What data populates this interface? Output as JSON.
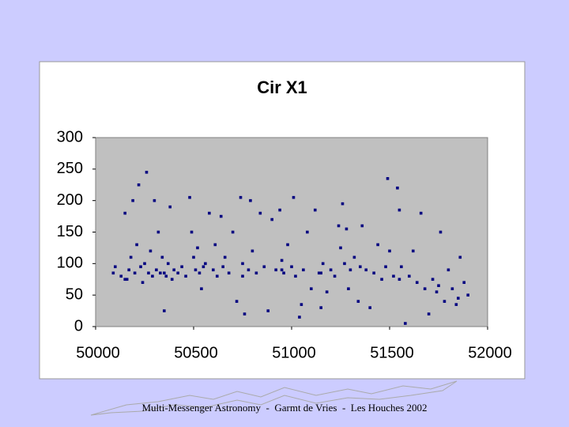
{
  "chart_data": {
    "type": "scatter",
    "title": "Cir X1",
    "x": [
      50090,
      50100,
      50130,
      50150,
      50160,
      50170,
      50180,
      50190,
      50200,
      50210,
      50220,
      50230,
      50240,
      50250,
      50260,
      50270,
      50280,
      50290,
      50300,
      50310,
      50320,
      50330,
      50340,
      50350,
      50360,
      50370,
      50380,
      50390,
      50400,
      50420,
      50440,
      50460,
      50480,
      50490,
      50500,
      50510,
      50520,
      50530,
      50540,
      50560,
      50580,
      50600,
      50610,
      50620,
      50640,
      50650,
      50660,
      50680,
      50700,
      50720,
      50740,
      50750,
      50760,
      50780,
      50790,
      50800,
      50820,
      50840,
      50860,
      50880,
      50900,
      50920,
      50940,
      50950,
      50960,
      50980,
      51000,
      51010,
      51020,
      51040,
      51050,
      51060,
      51080,
      51100,
      51120,
      51140,
      51150,
      51160,
      51180,
      51200,
      51220,
      51240,
      51250,
      51260,
      51270,
      51280,
      51290,
      51300,
      51320,
      51340,
      51360,
      51380,
      51400,
      51420,
      51440,
      51460,
      51480,
      51490,
      51500,
      51520,
      51540,
      51550,
      51560,
      51580,
      51600,
      51620,
      51640,
      51660,
      51680,
      51700,
      51720,
      51740,
      51760,
      51780,
      51800,
      51820,
      51840,
      51860,
      51880,
      51900,
      50150,
      50350,
      50550,
      50750,
      50950,
      51150,
      51350,
      51550,
      51750,
      51850
    ],
    "y": [
      85,
      95,
      80,
      180,
      75,
      90,
      110,
      200,
      85,
      130,
      225,
      95,
      70,
      100,
      245,
      85,
      120,
      80,
      200,
      90,
      150,
      85,
      110,
      25,
      80,
      100,
      190,
      75,
      90,
      85,
      95,
      80,
      205,
      150,
      110,
      90,
      125,
      85,
      60,
      100,
      180,
      90,
      130,
      80,
      175,
      95,
      110,
      85,
      150,
      40,
      205,
      100,
      20,
      90,
      200,
      120,
      85,
      180,
      95,
      25,
      170,
      90,
      185,
      105,
      85,
      130,
      95,
      205,
      80,
      15,
      35,
      90,
      150,
      60,
      185,
      85,
      30,
      100,
      55,
      90,
      80,
      160,
      125,
      195,
      100,
      155,
      60,
      90,
      110,
      40,
      160,
      90,
      30,
      85,
      130,
      75,
      95,
      235,
      120,
      80,
      220,
      185,
      95,
      5,
      80,
      120,
      70,
      180,
      60,
      20,
      75,
      55,
      150,
      40,
      90,
      60,
      35,
      110,
      70,
      50,
      75,
      85,
      95,
      80,
      90,
      85,
      95,
      75,
      65,
      45
    ],
    "color": "#000080",
    "xlim": [
      50000,
      52000
    ],
    "xticks": [
      50000,
      50500,
      51000,
      51500,
      52000
    ],
    "ylim": [
      0,
      300
    ],
    "yticks": [
      0,
      50,
      100,
      150,
      200,
      250,
      300
    ]
  },
  "footer": "Multi-Messenger Astronomy  -  Garmt de Vries  -  Les Houches 2002"
}
